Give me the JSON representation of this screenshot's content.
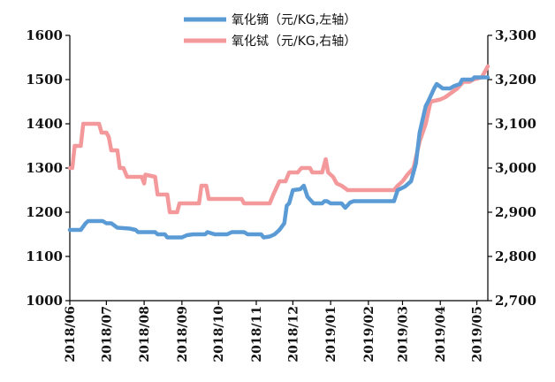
{
  "chart_data": {
    "type": "line",
    "title": "",
    "xlabel": "",
    "ylabel": "",
    "x_tick_labels": [
      "2018/06",
      "2018/07",
      "2018/08",
      "2018/09",
      "2018/10",
      "2018/11",
      "2018/12",
      "2019/01",
      "2019/02",
      "2019/03",
      "2019/04",
      "2019/05"
    ],
    "x_range": [
      "2018-06-01",
      "2019-05-10"
    ],
    "y_left": {
      "range": [
        1000,
        1600
      ],
      "tick_labels": [
        "1000",
        "1100",
        "1200",
        "1300",
        "1400",
        "1500",
        "1600"
      ]
    },
    "y_right": {
      "range": [
        2700,
        3300
      ],
      "tick_labels": [
        "2,700",
        "2,800",
        "2,900",
        "3,000",
        "3,100",
        "3,200",
        "3,300"
      ]
    },
    "grid": false,
    "legend_position": "top",
    "series": [
      {
        "name": "氧化镝（元/KG,左轴）",
        "axis": "left",
        "color": "#5b9bd5",
        "points": [
          [
            "2018-06-01",
            1160
          ],
          [
            "2018-06-10",
            1160
          ],
          [
            "2018-06-14",
            1175
          ],
          [
            "2018-06-16",
            1180
          ],
          [
            "2018-06-28",
            1180
          ],
          [
            "2018-07-01",
            1175
          ],
          [
            "2018-07-05",
            1175
          ],
          [
            "2018-07-10",
            1165
          ],
          [
            "2018-07-20",
            1163
          ],
          [
            "2018-07-25",
            1160
          ],
          [
            "2018-07-27",
            1155
          ],
          [
            "2018-08-10",
            1155
          ],
          [
            "2018-08-12",
            1150
          ],
          [
            "2018-08-18",
            1150
          ],
          [
            "2018-08-20",
            1143
          ],
          [
            "2018-09-01",
            1143
          ],
          [
            "2018-09-05",
            1148
          ],
          [
            "2018-09-10",
            1150
          ],
          [
            "2018-09-20",
            1150
          ],
          [
            "2018-09-22",
            1155
          ],
          [
            "2018-09-28",
            1150
          ],
          [
            "2018-10-08",
            1150
          ],
          [
            "2018-10-12",
            1155
          ],
          [
            "2018-10-22",
            1155
          ],
          [
            "2018-10-25",
            1150
          ],
          [
            "2018-11-05",
            1150
          ],
          [
            "2018-11-07",
            1143
          ],
          [
            "2018-11-12",
            1145
          ],
          [
            "2018-11-16",
            1150
          ],
          [
            "2018-11-20",
            1160
          ],
          [
            "2018-11-24",
            1175
          ],
          [
            "2018-11-26",
            1215
          ],
          [
            "2018-11-28",
            1220
          ],
          [
            "2018-12-01",
            1250
          ],
          [
            "2018-12-07",
            1252
          ],
          [
            "2018-12-10",
            1260
          ],
          [
            "2018-12-13",
            1235
          ],
          [
            "2018-12-18",
            1220
          ],
          [
            "2018-12-25",
            1220
          ],
          [
            "2018-12-27",
            1225
          ],
          [
            "2018-12-29",
            1225
          ],
          [
            "2019-01-01",
            1220
          ],
          [
            "2019-01-10",
            1220
          ],
          [
            "2019-01-13",
            1210
          ],
          [
            "2019-01-17",
            1222
          ],
          [
            "2019-01-20",
            1225
          ],
          [
            "2019-01-31",
            1225
          ],
          [
            "2019-02-14",
            1225
          ],
          [
            "2019-02-22",
            1225
          ],
          [
            "2019-02-25",
            1250
          ],
          [
            "2019-03-03",
            1258
          ],
          [
            "2019-03-08",
            1270
          ],
          [
            "2019-03-12",
            1310
          ],
          [
            "2019-03-15",
            1380
          ],
          [
            "2019-03-20",
            1440
          ],
          [
            "2019-03-22",
            1450
          ],
          [
            "2019-03-27",
            1480
          ],
          [
            "2019-03-29",
            1490
          ],
          [
            "2019-04-03",
            1480
          ],
          [
            "2019-04-09",
            1480
          ],
          [
            "2019-04-12",
            1485
          ],
          [
            "2019-04-17",
            1490
          ],
          [
            "2019-04-19",
            1500
          ],
          [
            "2019-04-27",
            1500
          ],
          [
            "2019-04-29",
            1505
          ],
          [
            "2019-05-10",
            1505
          ]
        ]
      },
      {
        "name": "氧化铽（元/KG,右轴）",
        "axis": "right",
        "color": "#f4999b",
        "points": [
          [
            "2018-06-01",
            3000
          ],
          [
            "2018-06-03",
            3000
          ],
          [
            "2018-06-05",
            3050
          ],
          [
            "2018-06-08",
            3050
          ],
          [
            "2018-06-10",
            3050
          ],
          [
            "2018-06-12",
            3100
          ],
          [
            "2018-06-25",
            3100
          ],
          [
            "2018-06-27",
            3080
          ],
          [
            "2018-07-01",
            3080
          ],
          [
            "2018-07-03",
            3070
          ],
          [
            "2018-07-05",
            3040
          ],
          [
            "2018-07-10",
            3040
          ],
          [
            "2018-07-12",
            3000
          ],
          [
            "2018-07-15",
            3000
          ],
          [
            "2018-07-18",
            2980
          ],
          [
            "2018-07-30",
            2980
          ],
          [
            "2018-08-01",
            2965
          ],
          [
            "2018-08-02",
            2985
          ],
          [
            "2018-08-10",
            2980
          ],
          [
            "2018-08-12",
            2940
          ],
          [
            "2018-08-20",
            2940
          ],
          [
            "2018-08-22",
            2900
          ],
          [
            "2018-08-28",
            2900
          ],
          [
            "2018-08-30",
            2920
          ],
          [
            "2018-09-15",
            2920
          ],
          [
            "2018-09-17",
            2960
          ],
          [
            "2018-09-21",
            2960
          ],
          [
            "2018-09-23",
            2930
          ],
          [
            "2018-10-20",
            2930
          ],
          [
            "2018-10-22",
            2920
          ],
          [
            "2018-11-12",
            2920
          ],
          [
            "2018-11-15",
            2940
          ],
          [
            "2018-11-20",
            2970
          ],
          [
            "2018-11-25",
            2970
          ],
          [
            "2018-11-28",
            2990
          ],
          [
            "2018-12-05",
            2990
          ],
          [
            "2018-12-08",
            3000
          ],
          [
            "2018-12-15",
            3000
          ],
          [
            "2018-12-17",
            2990
          ],
          [
            "2018-12-25",
            2990
          ],
          [
            "2018-12-28",
            3020
          ],
          [
            "2018-12-30",
            2990
          ],
          [
            "2019-01-03",
            2980
          ],
          [
            "2019-01-06",
            2965
          ],
          [
            "2019-01-10",
            2960
          ],
          [
            "2019-01-15",
            2950
          ],
          [
            "2019-02-22",
            2950
          ],
          [
            "2019-02-25",
            2960
          ],
          [
            "2019-03-01",
            2970
          ],
          [
            "2019-03-05",
            2985
          ],
          [
            "2019-03-10",
            3000
          ],
          [
            "2019-03-15",
            3060
          ],
          [
            "2019-03-20",
            3100
          ],
          [
            "2019-03-24",
            3150
          ],
          [
            "2019-04-01",
            3155
          ],
          [
            "2019-04-05",
            3160
          ],
          [
            "2019-04-10",
            3170
          ],
          [
            "2019-04-15",
            3180
          ],
          [
            "2019-04-20",
            3195
          ],
          [
            "2019-04-25",
            3195
          ],
          [
            "2019-04-28",
            3200
          ],
          [
            "2019-05-05",
            3205
          ],
          [
            "2019-05-10",
            3230
          ]
        ]
      }
    ]
  }
}
